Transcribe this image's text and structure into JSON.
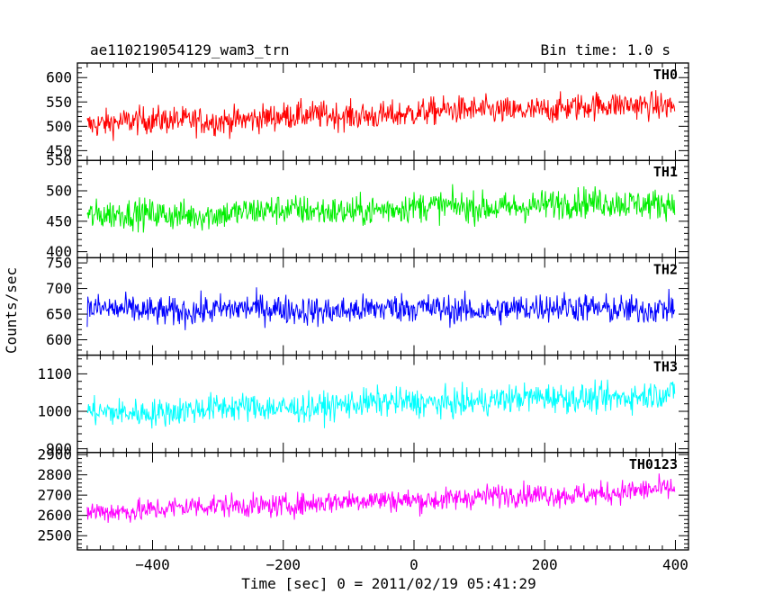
{
  "header": {
    "title": "ae110219054129_wam3_trn",
    "bin_time": "Bin time: 1.0 s"
  },
  "chart_data": {
    "type": "line",
    "title": "ae110219054129_wam3_trn",
    "xlabel": "Time [sec] 0 = 2011/02/19 05:41:29",
    "ylabel": "Counts/sec",
    "xlim": [
      -515,
      420
    ],
    "x_ticks": [
      "−400",
      "−200",
      "0",
      "200",
      "400"
    ],
    "x_tick_values": [
      -400,
      -200,
      0,
      200,
      400
    ],
    "x_range": [
      -500,
      399
    ],
    "bin_time_s": 1.0,
    "grid": false,
    "panels": [
      {
        "name": "TH0",
        "color": "#ff0000",
        "ylim": [
          430,
          630
        ],
        "y_ticks": [
          450,
          500,
          550,
          600
        ],
        "start_level": 505,
        "end_level": 545,
        "noise_amplitude": 24
      },
      {
        "name": "TH1",
        "color": "#00ee00",
        "ylim": [
          390,
          550
        ],
        "y_ticks": [
          400,
          450,
          500,
          550
        ],
        "start_level": 458,
        "end_level": 482,
        "noise_amplitude": 21
      },
      {
        "name": "TH2",
        "color": "#0000ff",
        "ylim": [
          570,
          760
        ],
        "y_ticks": [
          600,
          650,
          700,
          750
        ],
        "start_level": 657,
        "end_level": 662,
        "noise_amplitude": 24
      },
      {
        "name": "TH3",
        "color": "#00ffff",
        "ylim": [
          890,
          1150
        ],
        "y_ticks": [
          900,
          1000,
          1100
        ],
        "start_level": 995,
        "end_level": 1045,
        "noise_amplitude": 32
      },
      {
        "name": "TH0123",
        "color": "#ff00ff",
        "ylim": [
          2430,
          2910
        ],
        "y_ticks": [
          2500,
          2600,
          2700,
          2800,
          2900
        ],
        "start_level": 2620,
        "end_level": 2725,
        "noise_amplitude": 48
      }
    ]
  }
}
